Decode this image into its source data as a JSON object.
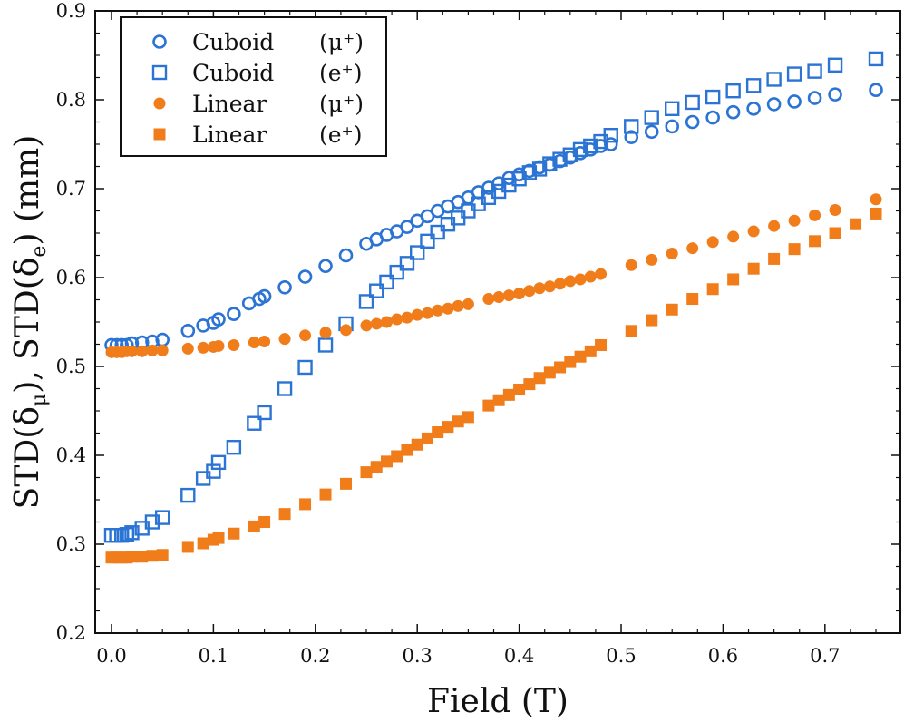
{
  "chart_data": {
    "type": "scatter",
    "title": "",
    "xlabel": "Field (T)",
    "ylabel": "STD(δμ), STD(δe) (mm)",
    "ylabel_parts": {
      "lead": "STD(δ",
      "sub1": "μ",
      "mid": "), STD(δ",
      "sub2": "e",
      "tail": ") (mm)"
    },
    "xlim": [
      -0.016,
      0.774
    ],
    "ylim": [
      0.2,
      0.9
    ],
    "xticks": [
      0.0,
      0.1,
      0.2,
      0.3,
      0.4,
      0.5,
      0.6,
      0.7
    ],
    "xtick_labels": [
      "0.0",
      "0.1",
      "0.2",
      "0.3",
      "0.4",
      "0.5",
      "0.6",
      "0.7"
    ],
    "yticks": [
      0.2,
      0.3,
      0.4,
      0.5,
      0.6,
      0.7,
      0.8,
      0.9
    ],
    "ytick_labels": [
      "0.2",
      "0.3",
      "0.4",
      "0.5",
      "0.6",
      "0.7",
      "0.8",
      "0.9"
    ],
    "grid": false,
    "legend_position": "top-left",
    "colors": {
      "blue": "#2b74d4",
      "orange": "#f07d1a"
    },
    "series": [
      {
        "name": "Cuboid (μ+)",
        "legend_name": "Cuboid",
        "legend_particle": "(μ⁺)",
        "marker": "circle-open",
        "color": "#2b74d4",
        "x": [
          0.0,
          0.005,
          0.01,
          0.015,
          0.02,
          0.03,
          0.04,
          0.05,
          0.075,
          0.09,
          0.1,
          0.105,
          0.12,
          0.135,
          0.145,
          0.15,
          0.17,
          0.19,
          0.21,
          0.23,
          0.25,
          0.26,
          0.27,
          0.28,
          0.29,
          0.3,
          0.31,
          0.32,
          0.33,
          0.34,
          0.35,
          0.36,
          0.37,
          0.38,
          0.39,
          0.4,
          0.41,
          0.42,
          0.43,
          0.44,
          0.45,
          0.46,
          0.47,
          0.48,
          0.49,
          0.51,
          0.53,
          0.55,
          0.57,
          0.59,
          0.61,
          0.63,
          0.65,
          0.67,
          0.69,
          0.71,
          0.75
        ],
        "y": [
          0.524,
          0.524,
          0.524,
          0.524,
          0.526,
          0.527,
          0.528,
          0.53,
          0.54,
          0.546,
          0.549,
          0.553,
          0.559,
          0.571,
          0.576,
          0.579,
          0.589,
          0.601,
          0.613,
          0.625,
          0.638,
          0.643,
          0.648,
          0.652,
          0.657,
          0.664,
          0.669,
          0.675,
          0.68,
          0.685,
          0.69,
          0.696,
          0.701,
          0.706,
          0.712,
          0.716,
          0.72,
          0.724,
          0.727,
          0.731,
          0.735,
          0.74,
          0.744,
          0.748,
          0.75,
          0.758,
          0.764,
          0.77,
          0.775,
          0.78,
          0.786,
          0.79,
          0.795,
          0.798,
          0.802,
          0.806,
          0.811
        ]
      },
      {
        "name": "Cuboid (e+)",
        "legend_name": "Cuboid",
        "legend_particle": "(e⁺)",
        "marker": "square-open",
        "color": "#2b74d4",
        "x": [
          0.0,
          0.005,
          0.01,
          0.015,
          0.02,
          0.03,
          0.04,
          0.05,
          0.075,
          0.09,
          0.1,
          0.105,
          0.12,
          0.14,
          0.15,
          0.17,
          0.19,
          0.21,
          0.23,
          0.25,
          0.26,
          0.27,
          0.28,
          0.29,
          0.3,
          0.31,
          0.32,
          0.33,
          0.34,
          0.35,
          0.36,
          0.37,
          0.38,
          0.39,
          0.4,
          0.41,
          0.42,
          0.43,
          0.44,
          0.45,
          0.46,
          0.47,
          0.48,
          0.49,
          0.51,
          0.53,
          0.55,
          0.57,
          0.59,
          0.61,
          0.63,
          0.65,
          0.67,
          0.69,
          0.71,
          0.75
        ],
        "y": [
          0.31,
          0.31,
          0.31,
          0.311,
          0.313,
          0.318,
          0.325,
          0.33,
          0.355,
          0.374,
          0.382,
          0.392,
          0.409,
          0.436,
          0.448,
          0.475,
          0.499,
          0.524,
          0.548,
          0.573,
          0.585,
          0.595,
          0.606,
          0.616,
          0.628,
          0.641,
          0.651,
          0.66,
          0.667,
          0.675,
          0.683,
          0.69,
          0.697,
          0.704,
          0.711,
          0.718,
          0.722,
          0.728,
          0.733,
          0.738,
          0.744,
          0.748,
          0.753,
          0.76,
          0.77,
          0.78,
          0.79,
          0.797,
          0.803,
          0.81,
          0.816,
          0.823,
          0.829,
          0.832,
          0.839,
          0.846
        ]
      },
      {
        "name": "Linear (μ+)",
        "legend_name": "Linear",
        "legend_particle": "(μ⁺)",
        "marker": "circle-filled",
        "color": "#f07d1a",
        "x": [
          0.0,
          0.005,
          0.01,
          0.015,
          0.02,
          0.03,
          0.04,
          0.05,
          0.075,
          0.09,
          0.1,
          0.105,
          0.12,
          0.14,
          0.15,
          0.17,
          0.19,
          0.21,
          0.23,
          0.25,
          0.26,
          0.27,
          0.28,
          0.29,
          0.3,
          0.31,
          0.32,
          0.33,
          0.34,
          0.35,
          0.37,
          0.38,
          0.39,
          0.4,
          0.41,
          0.42,
          0.43,
          0.44,
          0.45,
          0.46,
          0.47,
          0.48,
          0.51,
          0.53,
          0.55,
          0.57,
          0.59,
          0.61,
          0.63,
          0.65,
          0.67,
          0.69,
          0.71,
          0.75
        ],
        "y": [
          0.516,
          0.516,
          0.516,
          0.517,
          0.517,
          0.517,
          0.518,
          0.518,
          0.52,
          0.521,
          0.522,
          0.523,
          0.524,
          0.527,
          0.528,
          0.531,
          0.535,
          0.538,
          0.541,
          0.546,
          0.548,
          0.55,
          0.553,
          0.555,
          0.558,
          0.56,
          0.563,
          0.565,
          0.568,
          0.57,
          0.576,
          0.578,
          0.58,
          0.582,
          0.585,
          0.588,
          0.59,
          0.593,
          0.596,
          0.598,
          0.601,
          0.604,
          0.614,
          0.62,
          0.627,
          0.633,
          0.64,
          0.646,
          0.652,
          0.658,
          0.664,
          0.67,
          0.676,
          0.688
        ]
      },
      {
        "name": "Linear (e+)",
        "legend_name": "Linear",
        "legend_particle": "(e⁺)",
        "marker": "square-filled",
        "color": "#f07d1a",
        "x": [
          0.0,
          0.005,
          0.01,
          0.015,
          0.02,
          0.03,
          0.04,
          0.05,
          0.075,
          0.09,
          0.1,
          0.105,
          0.12,
          0.14,
          0.15,
          0.17,
          0.19,
          0.21,
          0.23,
          0.25,
          0.26,
          0.27,
          0.28,
          0.29,
          0.3,
          0.31,
          0.32,
          0.33,
          0.34,
          0.35,
          0.37,
          0.38,
          0.39,
          0.4,
          0.41,
          0.42,
          0.43,
          0.44,
          0.45,
          0.46,
          0.47,
          0.48,
          0.51,
          0.53,
          0.55,
          0.57,
          0.59,
          0.61,
          0.63,
          0.65,
          0.67,
          0.69,
          0.71,
          0.73,
          0.75
        ],
        "y": [
          0.285,
          0.285,
          0.285,
          0.285,
          0.286,
          0.286,
          0.287,
          0.288,
          0.297,
          0.301,
          0.305,
          0.307,
          0.312,
          0.32,
          0.325,
          0.334,
          0.345,
          0.356,
          0.368,
          0.381,
          0.387,
          0.393,
          0.399,
          0.406,
          0.412,
          0.419,
          0.426,
          0.432,
          0.438,
          0.443,
          0.456,
          0.462,
          0.468,
          0.474,
          0.48,
          0.487,
          0.493,
          0.499,
          0.505,
          0.511,
          0.517,
          0.524,
          0.54,
          0.552,
          0.564,
          0.576,
          0.587,
          0.598,
          0.61,
          0.621,
          0.632,
          0.641,
          0.65,
          0.66,
          0.672
        ]
      }
    ]
  }
}
